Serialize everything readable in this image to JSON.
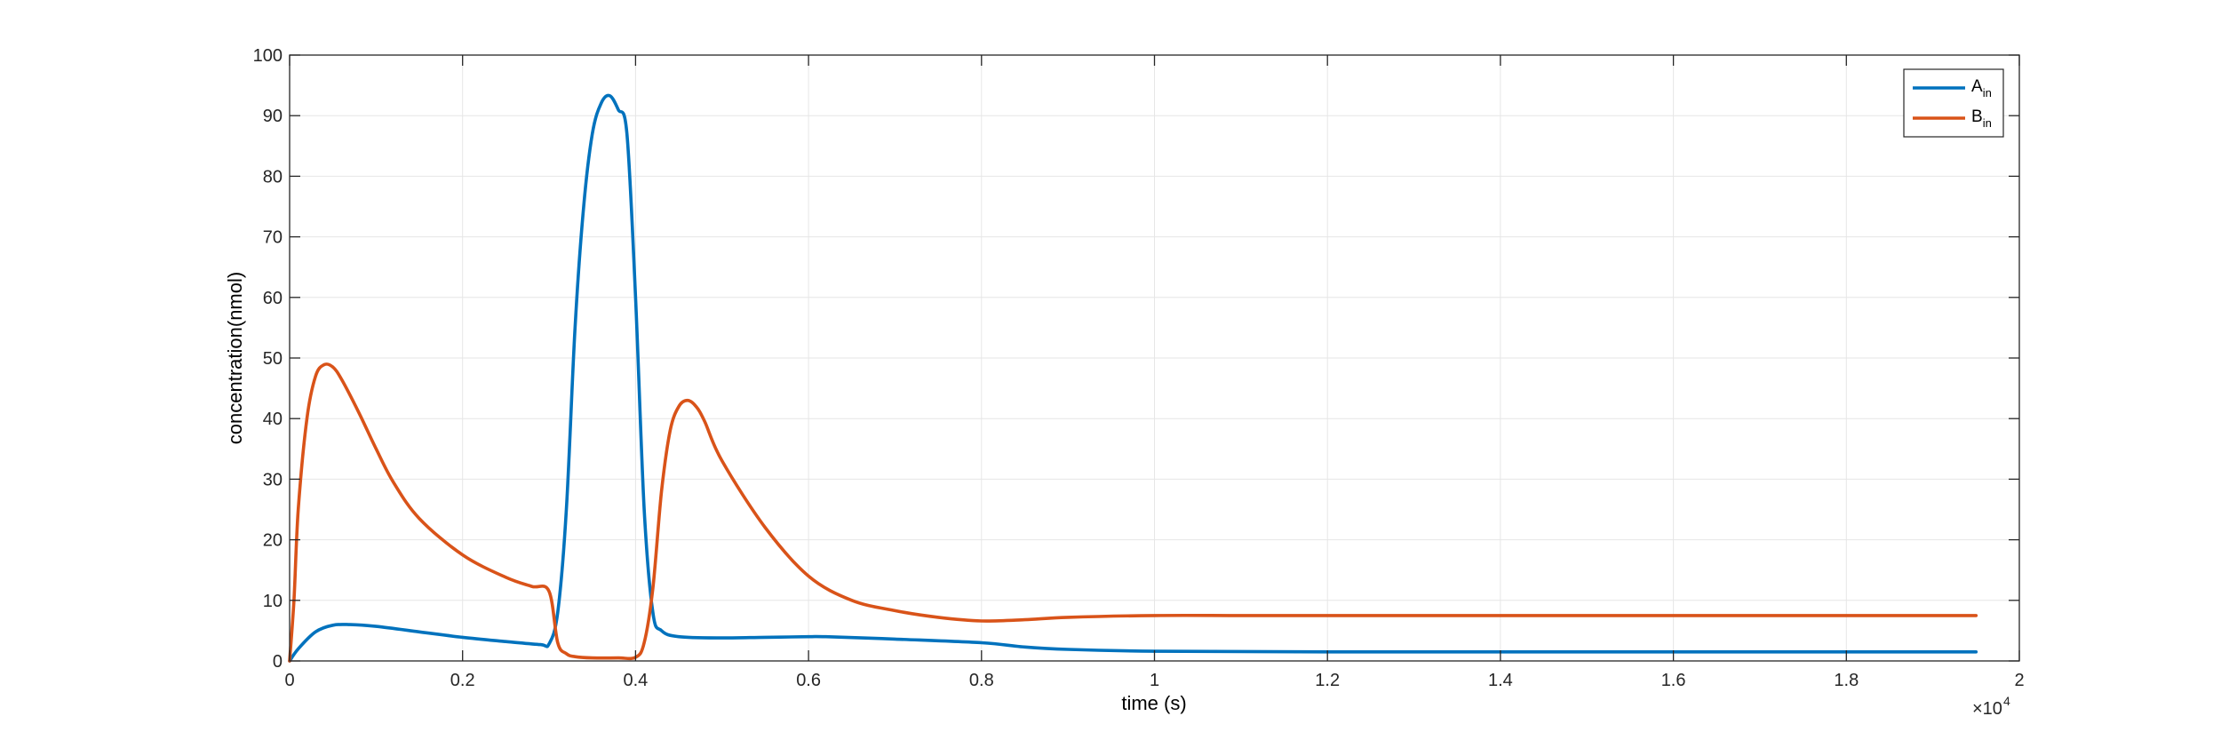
{
  "chart_data": {
    "type": "line",
    "xlabel": "time (s)",
    "ylabel": "concentration(nmol)",
    "x_exponent_label": "×10",
    "x_exponent_power": "4",
    "xlim": [
      0,
      2
    ],
    "ylim": [
      0,
      100
    ],
    "x_ticks": [
      0,
      0.2,
      0.4,
      0.6,
      0.8,
      1,
      1.2,
      1.4,
      1.6,
      1.8,
      2
    ],
    "x_tick_labels": [
      "0",
      "0.2",
      "0.4",
      "0.6",
      "0.8",
      "1",
      "1.2",
      "1.4",
      "1.6",
      "1.8",
      "2"
    ],
    "y_ticks": [
      0,
      10,
      20,
      30,
      40,
      50,
      60,
      70,
      80,
      90,
      100
    ],
    "y_tick_labels": [
      "0",
      "10",
      "20",
      "30",
      "40",
      "50",
      "60",
      "70",
      "80",
      "90",
      "100"
    ],
    "grid": true,
    "legend_position": "top-right",
    "series": [
      {
        "label_main": "A",
        "label_sub": "in",
        "color": "#0072BD",
        "x": [
          0,
          0.01,
          0.03,
          0.05,
          0.07,
          0.1,
          0.15,
          0.2,
          0.25,
          0.29,
          0.3,
          0.31,
          0.32,
          0.33,
          0.34,
          0.35,
          0.36,
          0.37,
          0.38,
          0.39,
          0.4,
          0.41,
          0.42,
          0.43,
          0.45,
          0.5,
          0.55,
          0.6,
          0.62,
          0.7,
          0.8,
          0.85,
          0.9,
          1.0,
          1.2,
          1.5,
          1.8,
          1.95
        ],
        "y": [
          0,
          2,
          4.8,
          5.9,
          6.0,
          5.7,
          4.8,
          3.9,
          3.2,
          2.7,
          2.8,
          8,
          25,
          55,
          75,
          87,
          92,
          93.3,
          91,
          87,
          60,
          25,
          8,
          5,
          4,
          3.8,
          3.9,
          4.0,
          4.0,
          3.6,
          3.0,
          2.3,
          1.9,
          1.6,
          1.5,
          1.5,
          1.5,
          1.5
        ]
      },
      {
        "label_main": "B",
        "label_sub": "in",
        "color": "#D95319",
        "x": [
          0,
          0.005,
          0.01,
          0.02,
          0.03,
          0.04,
          0.05,
          0.06,
          0.08,
          0.1,
          0.12,
          0.15,
          0.2,
          0.25,
          0.28,
          0.3,
          0.31,
          0.32,
          0.33,
          0.35,
          0.38,
          0.4,
          0.41,
          0.42,
          0.43,
          0.44,
          0.45,
          0.46,
          0.47,
          0.48,
          0.5,
          0.55,
          0.6,
          0.65,
          0.7,
          0.75,
          0.8,
          0.85,
          0.9,
          1.0,
          1.1,
          1.2,
          1.5,
          1.8,
          1.95
        ],
        "y": [
          0,
          10,
          25,
          40,
          47,
          48.9,
          48.5,
          46.5,
          41,
          35,
          29.5,
          23.5,
          17.5,
          13.8,
          12.3,
          11.5,
          3,
          1.2,
          0.7,
          0.5,
          0.5,
          0.6,
          3,
          12,
          28,
          38,
          42,
          43,
          42,
          39.5,
          33,
          22,
          14,
          10,
          8.3,
          7.2,
          6.6,
          6.8,
          7.2,
          7.5,
          7.5,
          7.5,
          7.5,
          7.5,
          7.5
        ]
      }
    ]
  }
}
